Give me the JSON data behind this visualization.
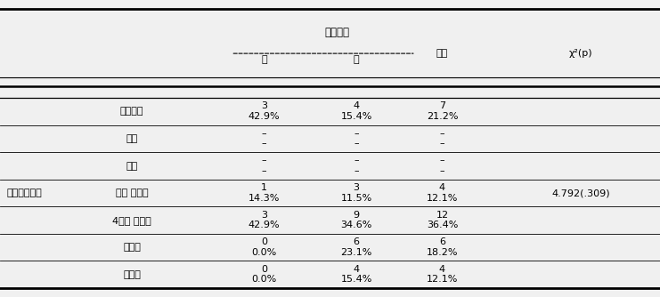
{
  "title": "",
  "col_header_main": "교육여부",
  "col_header_sub": [
    "유",
    "부"
  ],
  "col_extra": "전체",
  "col_stat": "χ²(p)",
  "row_header_group": "희망최종학력",
  "rows": [
    {
      "label": "상관없음",
      "values": [
        "3",
        "4",
        "7"
      ],
      "percents": [
        "42.9%",
        "15.4%",
        "21.2%"
      ]
    },
    {
      "label": "중졸",
      "values": [
        "–",
        "–",
        "–"
      ],
      "percents": [
        "–",
        "–",
        "–"
      ]
    },
    {
      "label": "고졸",
      "values": [
        "–",
        "–",
        "–"
      ],
      "percents": [
        "–",
        "–",
        "–"
      ]
    },
    {
      "label": "전문 대학졸",
      "values": [
        "1",
        "3",
        "4"
      ],
      "percents": [
        "14.3%",
        "11.5%",
        "12.1%"
      ]
    },
    {
      "label": "4년제 대학졸",
      "values": [
        "3",
        "9",
        "12"
      ],
      "percents": [
        "42.9%",
        "34.6%",
        "36.4%"
      ]
    },
    {
      "label": "석사졸",
      "values": [
        "0",
        "6",
        "6"
      ],
      "percents": [
        "0.0%",
        "23.1%",
        "18.2%"
      ]
    },
    {
      "label": "박사졸",
      "values": [
        "0",
        "4",
        "4"
      ],
      "percents": [
        "0.0%",
        "15.4%",
        "12.1%"
      ]
    }
  ],
  "stat_value": "4.792(.309)",
  "stat_row": 3,
  "bg_color": "#f0f0f0",
  "text_color": "#111111"
}
